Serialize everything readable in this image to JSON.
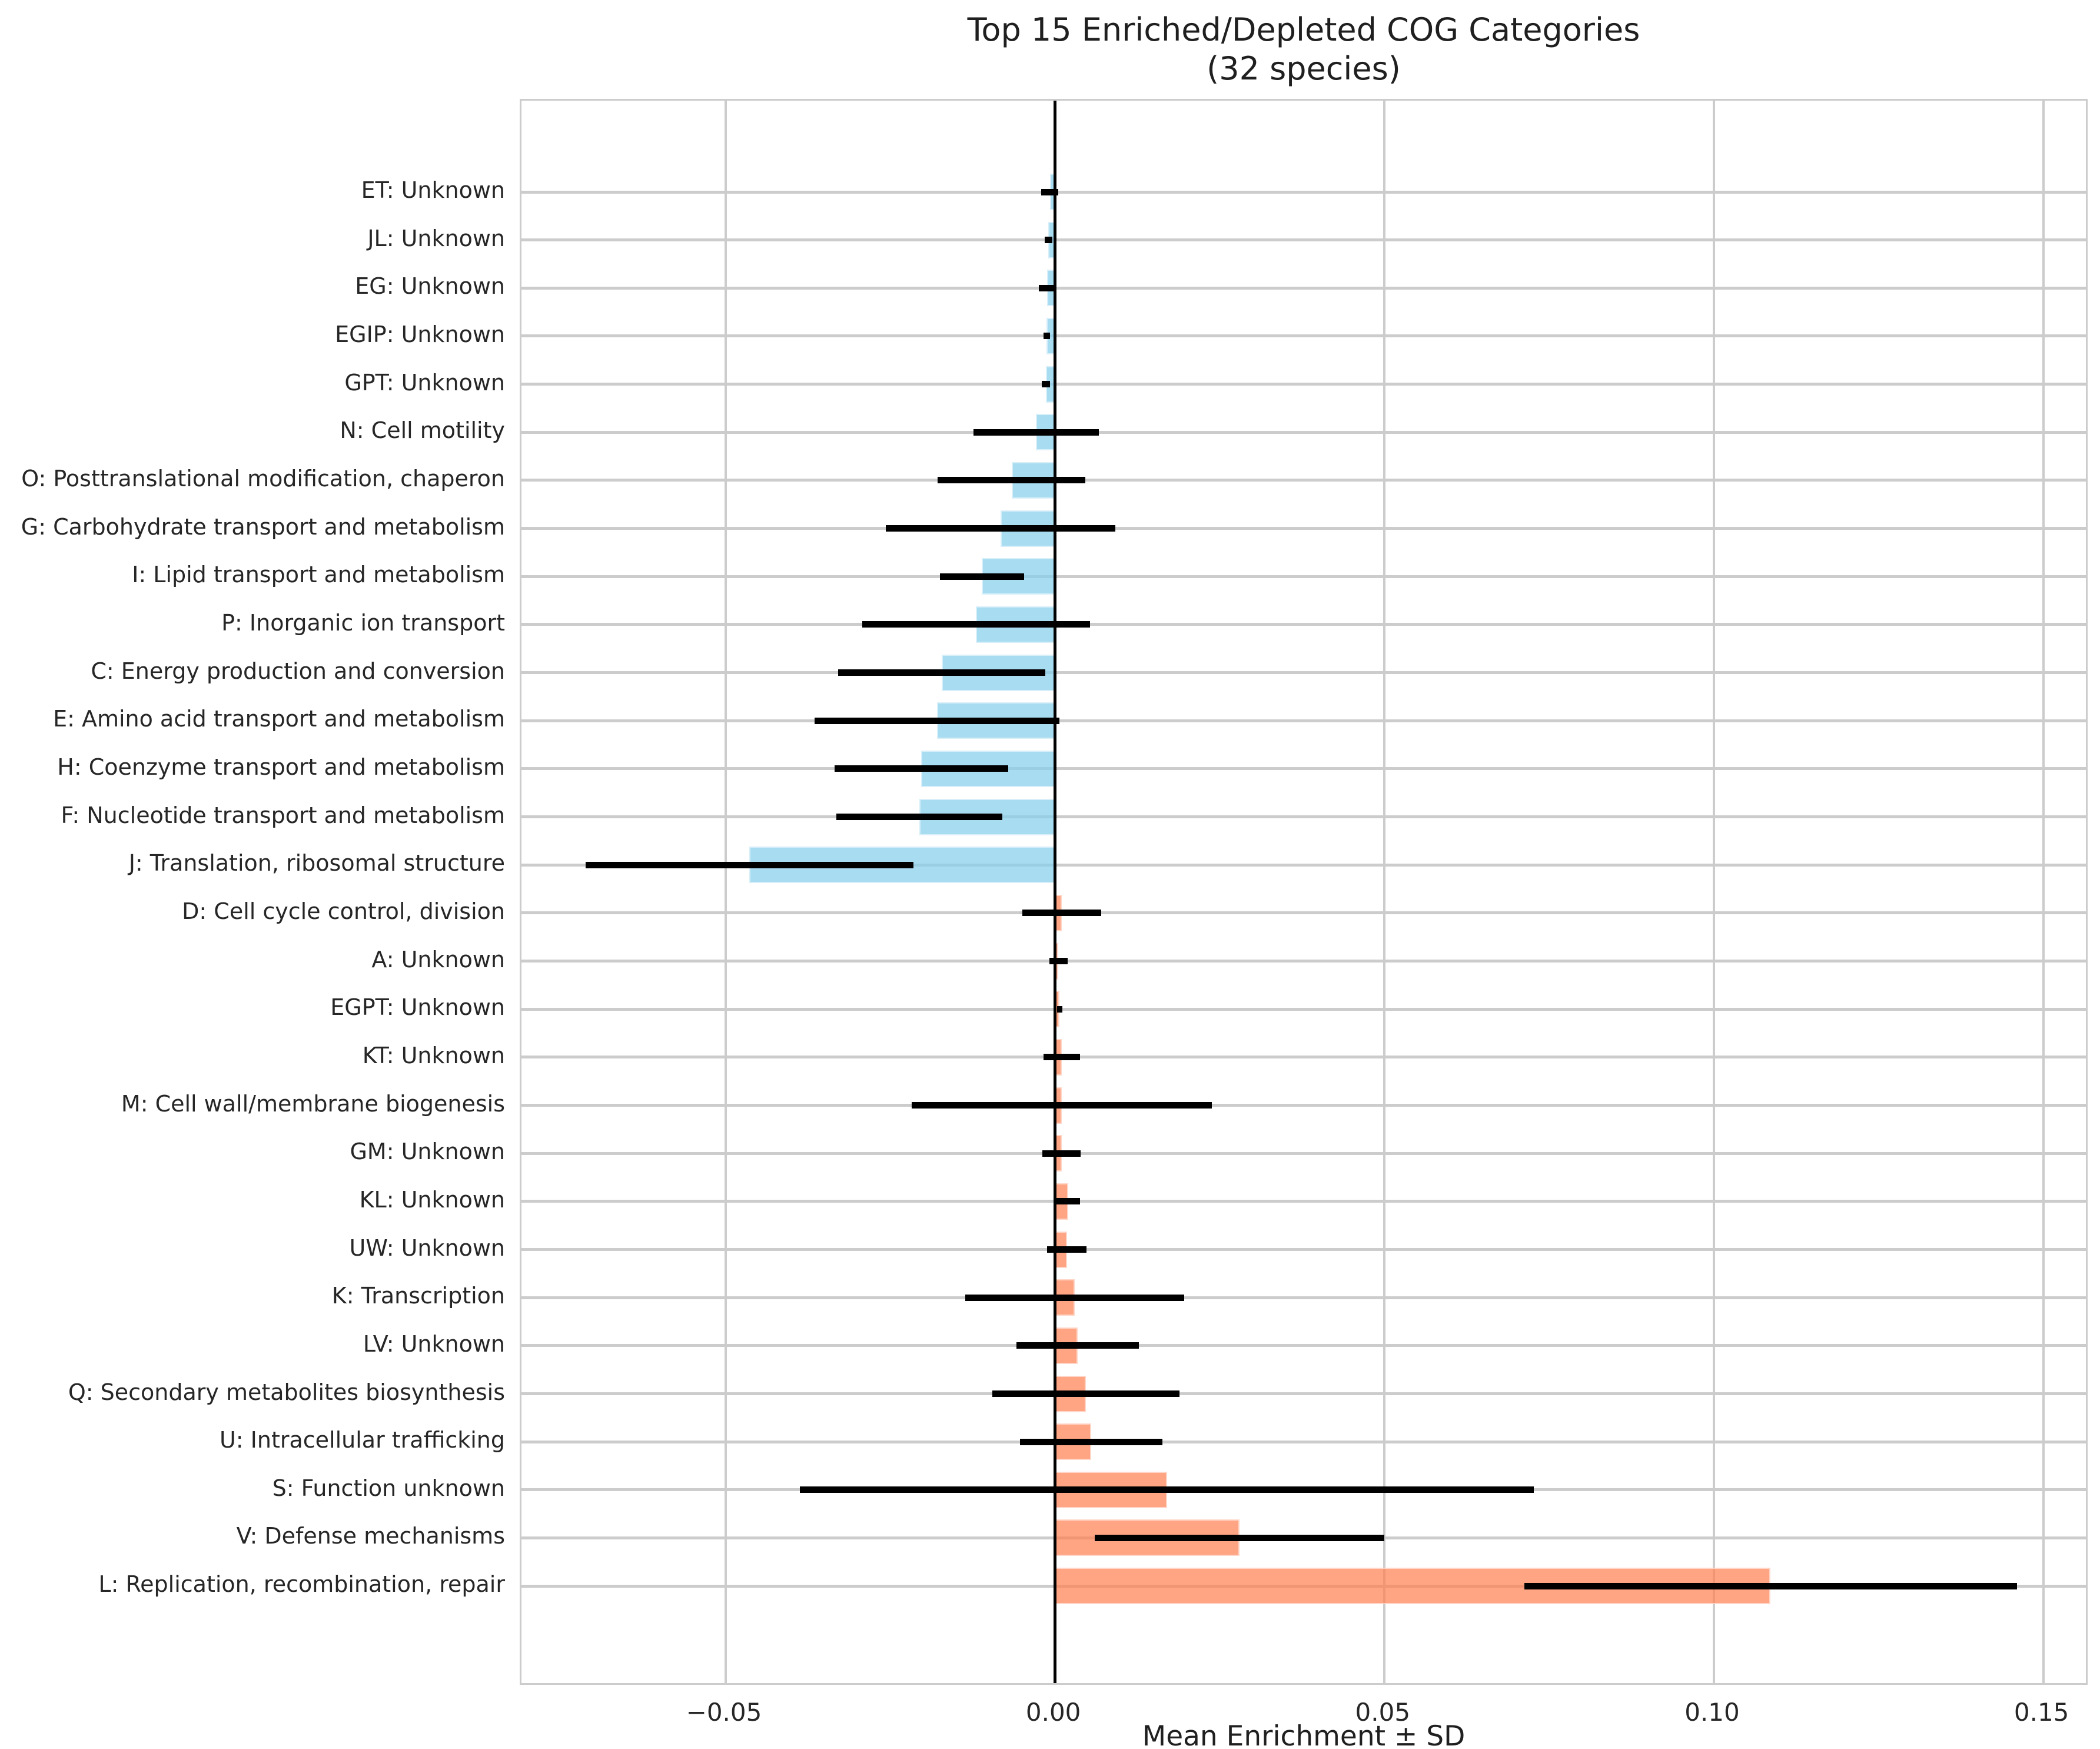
{
  "figure": {
    "title_line1": "Top 15 Enriched/Depleted COG Categories",
    "title_line2": "(32 species)",
    "xlabel": "Mean Enrichment ± SD"
  },
  "chart_data": {
    "type": "bar",
    "orientation": "horizontal",
    "title": "Top 15 Enriched/Depleted COG Categories (32 species)",
    "xlabel": "Mean Enrichment ± SD",
    "ylabel": "",
    "grid": true,
    "legend": "none",
    "zero_line": true,
    "error_bars": "symmetric SD, black, no caps",
    "xlim": [
      -0.081,
      0.157
    ],
    "xticks": [
      -0.05,
      0.0,
      0.05,
      0.1,
      0.15
    ],
    "xtick_labels": [
      "−0.05",
      "0.00",
      "0.05",
      "0.10",
      "0.15"
    ],
    "colors": {
      "depleted_bar": "#A9D9EE",
      "enriched_bar": "#FFA483",
      "depleted_bar_rgba": "rgba(135,206,235,0.72)",
      "enriched_bar_rgba": "rgba(255,127,80,0.70)",
      "error_bar": "#000000",
      "zero_line": "#000000",
      "grid": "#cccccc",
      "text": "#262626"
    },
    "categories": [
      "ET: Unknown",
      "JL: Unknown",
      "EG: Unknown",
      "EGIP: Unknown",
      "GPT: Unknown",
      "N: Cell motility",
      "O: Posttranslational modification, chaperon",
      "G: Carbohydrate transport and metabolism",
      "I: Lipid transport and metabolism",
      "P: Inorganic ion transport",
      "C: Energy production and conversion",
      "E: Amino acid transport and metabolism",
      "H: Coenzyme transport and metabolism",
      "F: Nucleotide transport and metabolism",
      "J: Translation, ribosomal structure",
      "D: Cell cycle control, division",
      "A: Unknown",
      "EGPT: Unknown",
      "KT: Unknown",
      "M: Cell wall/membrane biogenesis",
      "GM: Unknown",
      "KL: Unknown",
      "UW: Unknown",
      "K: Transcription",
      "LV: Unknown",
      "Q: Secondary metabolites biosynthesis",
      "U: Intracellular trafficking",
      "S: Function unknown",
      "V: Defense mechanisms",
      "L: Replication, recombination, repair"
    ],
    "means": [
      -0.0008,
      -0.001,
      -0.0012,
      -0.0013,
      -0.0014,
      -0.0029,
      -0.0066,
      -0.0083,
      -0.0111,
      -0.012,
      -0.0172,
      -0.0179,
      -0.0203,
      -0.0206,
      -0.0464,
      0.001,
      0.0005,
      0.0007,
      0.001,
      0.001,
      0.001,
      0.002,
      0.0018,
      0.003,
      0.0034,
      0.0047,
      0.0055,
      0.017,
      0.028,
      0.1086
    ],
    "sds": [
      0.0013,
      0.0006,
      0.0013,
      0.0005,
      0.0006,
      0.0095,
      0.0112,
      0.0174,
      0.0064,
      0.0173,
      0.0157,
      0.0186,
      0.0132,
      0.0126,
      0.0249,
      0.006,
      0.0014,
      0.0004,
      0.0028,
      0.0228,
      0.0029,
      0.0018,
      0.003,
      0.0166,
      0.0093,
      0.0142,
      0.0108,
      0.0557,
      0.022,
      0.0374
    ]
  }
}
